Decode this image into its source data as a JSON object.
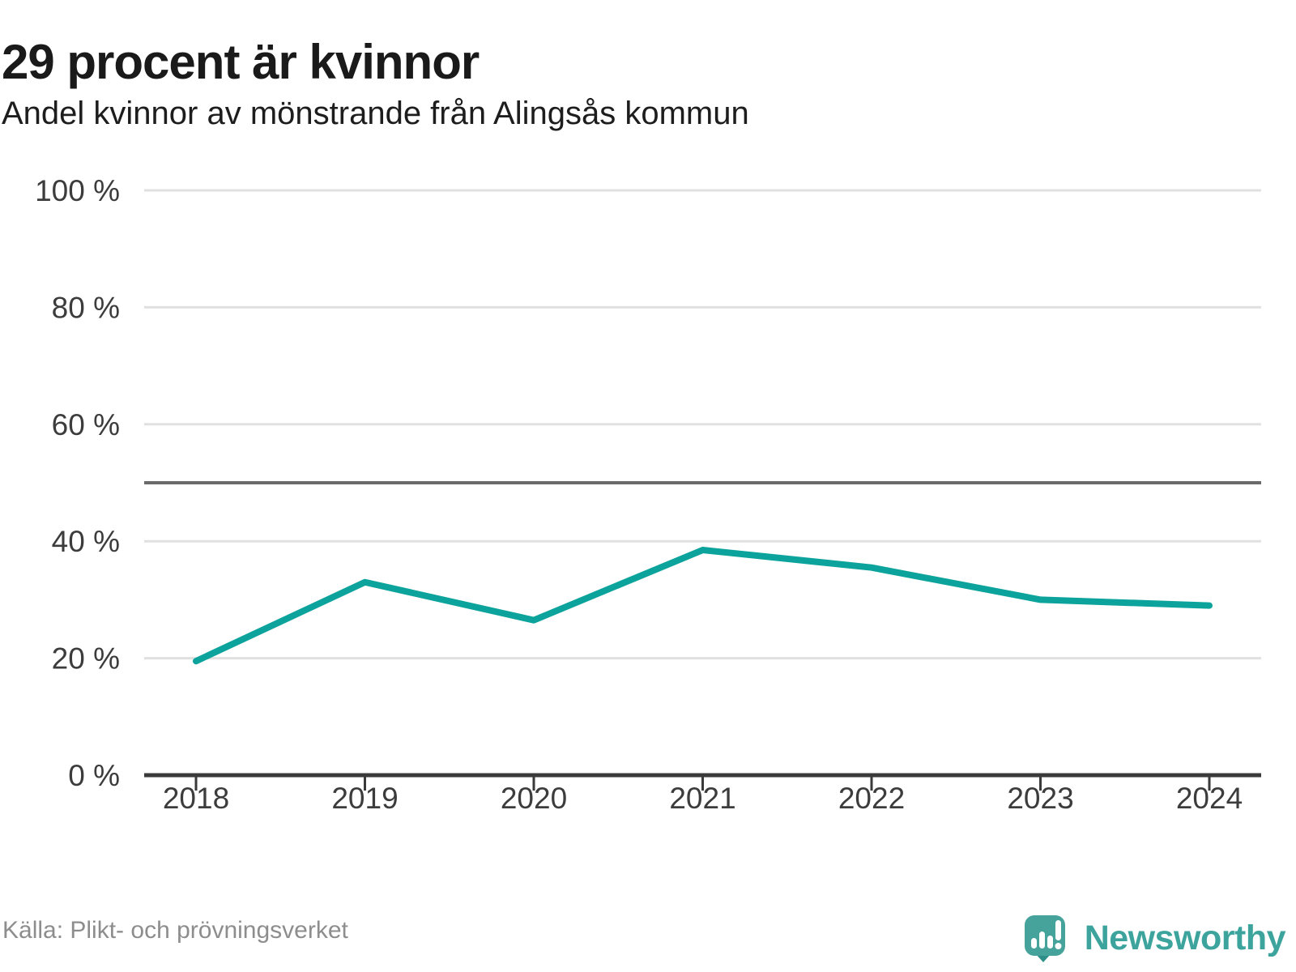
{
  "header": {
    "title": "29 procent är kvinnor",
    "subtitle": "Andel kvinnor av mönstrande från Alingsås kommun"
  },
  "chart_data": {
    "type": "line",
    "title": "29 procent är kvinnor",
    "subtitle": "Andel kvinnor av mönstrande från Alingsås kommun",
    "x": [
      "2018",
      "2019",
      "2020",
      "2021",
      "2022",
      "2023",
      "2024"
    ],
    "series": [
      {
        "name": "andel-kvinnor",
        "label": "Andel kvinnor av mönstrande",
        "color": "#0ba39b",
        "values": [
          19.5,
          33,
          26.5,
          38.5,
          35.5,
          30,
          29
        ]
      }
    ],
    "ylim": [
      0,
      100
    ],
    "yticks": [
      0,
      20,
      40,
      60,
      80,
      100
    ],
    "ytick_labels": [
      "0 %",
      "20 %",
      "40 %",
      "60 %",
      "80 %",
      "100 %"
    ],
    "reference_line": {
      "value": 50,
      "color": "#6a6a6a"
    },
    "grid": true,
    "legend_position": "none"
  },
  "footer": {
    "source": "Källa: Plikt- och prövningsverket",
    "brand": "Newsworthy"
  },
  "colors": {
    "accent": "#0ba39b",
    "brand_teal": "#46a39c",
    "brand_teal_dark": "#2e8f88",
    "grid": "#e0e0e0",
    "axis": "#3a3a3a",
    "tick_text": "#3c3c3c",
    "text": "#1a1a1a",
    "muted": "#8d8d8d"
  }
}
